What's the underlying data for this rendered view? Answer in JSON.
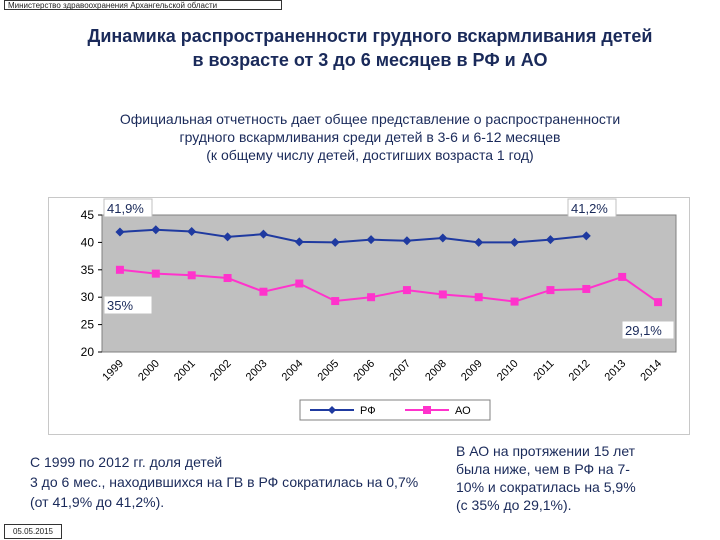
{
  "header": {
    "ministry": "Министерство здравоохранения Архангельской области",
    "title_line1": "Динамика распространенности  грудного вскармливания детей",
    "title_line2": "в возрасте от 3 до 6 месяцев в РФ и АО"
  },
  "subtitle": {
    "line1": "Официальная отчетность дает общее представление о распространенности",
    "line2": "грудного вскармливания среди детей в 3-6 и 6-12 месяцев",
    "line3": "(к общему числу детей, достигших возраста 1 год)"
  },
  "chart_data": {
    "type": "line",
    "categories": [
      "1999",
      "2000",
      "2001",
      "2002",
      "2003",
      "2004",
      "2005",
      "2006",
      "2007",
      "2008",
      "2009",
      "2010",
      "2011",
      "2012",
      "2013",
      "2014"
    ],
    "series": [
      {
        "name": "РФ",
        "color": "#1f3aa0",
        "marker": "diamond",
        "values": [
          41.9,
          42.3,
          42.0,
          41.0,
          41.5,
          40.1,
          40.0,
          40.5,
          40.3,
          40.8,
          40.0,
          40.0,
          40.5,
          41.2,
          null,
          null
        ]
      },
      {
        "name": "АО",
        "color": "#ff33cc",
        "marker": "square",
        "values": [
          35.0,
          34.3,
          34.0,
          33.5,
          31.0,
          32.5,
          29.3,
          30.0,
          31.3,
          30.5,
          30.0,
          29.2,
          31.3,
          31.5,
          33.7,
          29.1
        ]
      }
    ],
    "ylim": [
      20,
      45
    ],
    "yticks": [
      20,
      25,
      30,
      35,
      40,
      45
    ],
    "grid": false,
    "plot_background": "#c0c0c0",
    "legend_position": "bottom",
    "annotations": [
      "41,9%",
      "41,2%",
      "35%",
      "29,1%"
    ]
  },
  "notes": {
    "left_line1": "С 1999 по 2012 гг. доля детей",
    "left_line2": " 3 до 6 мес., находившихся на ГВ в РФ сократилась на 0,7%",
    "left_line3": "(от 41,9% до 41,2%).",
    "right_line1": "В АО на протяжении 15 лет",
    "right_line2": "была ниже, чем в РФ на 7-",
    "right_line3": "10% и сократилась на 5,9%",
    "right_line4": "(с 35% до 29,1%)."
  },
  "footer": {
    "date": "05.05.2015"
  }
}
